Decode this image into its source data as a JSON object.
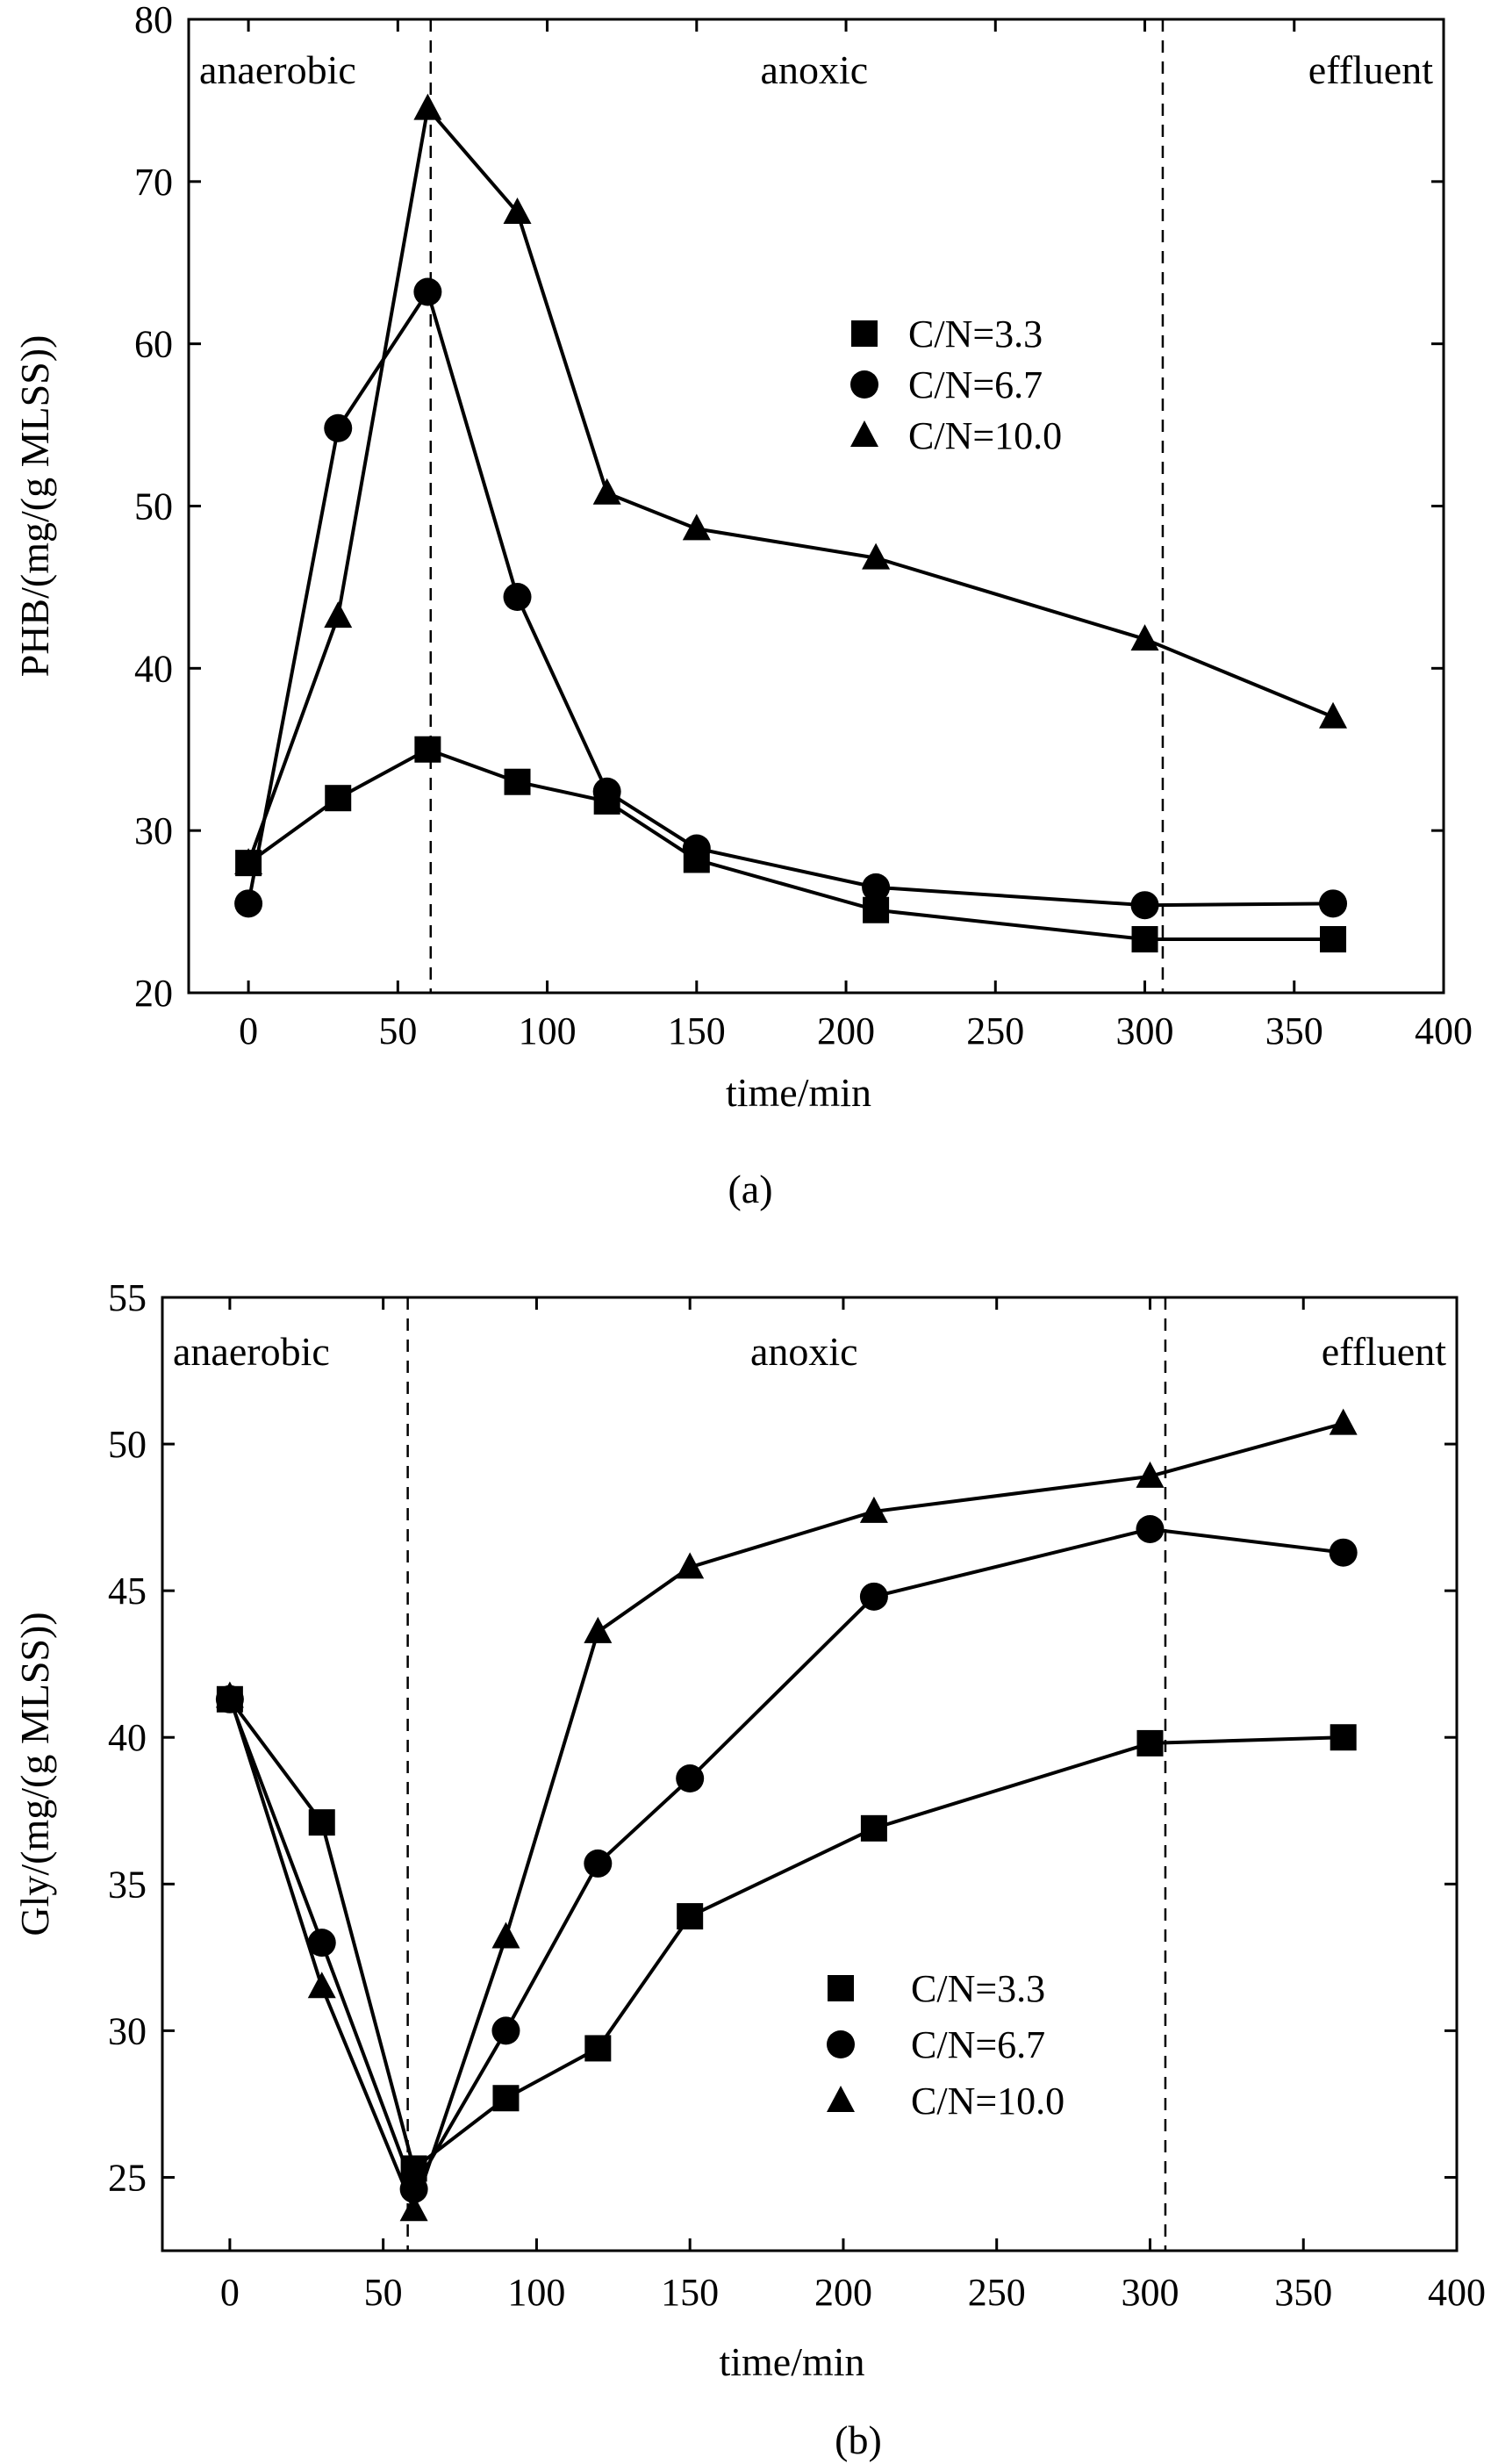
{
  "chart_data": [
    {
      "type": "line",
      "panel": "(a)",
      "caption": "(a)",
      "xlabel": "time/min",
      "ylabel": "PHB/(mg/(g MLSS))",
      "xlim": [
        -20,
        400
      ],
      "ylim": [
        20,
        80
      ],
      "xticks": [
        0,
        50,
        100,
        150,
        200,
        250,
        300,
        350,
        400
      ],
      "yticks": [
        20,
        30,
        40,
        50,
        60,
        70,
        80
      ],
      "phase_boundaries": [
        61,
        306
      ],
      "regions": [
        {
          "label": "anaerobic",
          "align": "left"
        },
        {
          "label": "anoxic",
          "align": "center"
        },
        {
          "label": "effluent",
          "align": "right"
        }
      ],
      "legend_position": "upper-middle",
      "series": [
        {
          "name": "C/N=3.3",
          "marker": "square",
          "x": [
            0,
            30,
            60,
            90,
            120,
            150,
            210,
            300,
            363
          ],
          "y": [
            28,
            32,
            35,
            33,
            31.8,
            28.2,
            25.1,
            23.3,
            23.3
          ]
        },
        {
          "name": "C/N=6.7",
          "marker": "circle",
          "x": [
            0,
            30,
            60,
            90,
            120,
            150,
            210,
            300,
            363
          ],
          "y": [
            25.5,
            54.8,
            63.2,
            44.4,
            32.4,
            28.9,
            26.5,
            25.4,
            25.5
          ]
        },
        {
          "name": "C/N=10.0",
          "marker": "triangle",
          "x": [
            0,
            30,
            60,
            90,
            120,
            150,
            210,
            300,
            363
          ],
          "y": [
            28,
            43.2,
            74.5,
            68.1,
            50.8,
            48.6,
            46.8,
            41.8,
            37
          ]
        }
      ]
    },
    {
      "type": "line",
      "panel": "(b)",
      "caption": "(b)",
      "xlabel": "time/min",
      "ylabel": "Gly/(mg/(g MLSS))",
      "xlim": [
        -22,
        400
      ],
      "ylim": [
        22.5,
        55
      ],
      "xticks": [
        0,
        50,
        100,
        150,
        200,
        250,
        300,
        350,
        400
      ],
      "yticks": [
        25,
        30,
        35,
        40,
        45,
        50,
        55
      ],
      "phase_boundaries": [
        58,
        305
      ],
      "regions": [
        {
          "label": "anaerobic",
          "align": "left"
        },
        {
          "label": "anoxic",
          "align": "center"
        },
        {
          "label": "effluent",
          "align": "right"
        }
      ],
      "legend_position": "lower-middle",
      "series": [
        {
          "name": "C/N=3.3",
          "marker": "square",
          "x": [
            0,
            30,
            60,
            90,
            120,
            150,
            210,
            300,
            363
          ],
          "y": [
            41.3,
            37.1,
            25.3,
            27.7,
            29.4,
            33.9,
            36.9,
            39.8,
            40
          ]
        },
        {
          "name": "C/N=6.7",
          "marker": "circle",
          "x": [
            0,
            30,
            60,
            90,
            120,
            150,
            210,
            300,
            363
          ],
          "y": [
            41.3,
            33,
            24.6,
            30,
            35.7,
            38.6,
            44.8,
            47.1,
            46.3
          ]
        },
        {
          "name": "C/N=10.0",
          "marker": "triangle",
          "x": [
            0,
            30,
            60,
            90,
            120,
            150,
            210,
            300,
            363
          ],
          "y": [
            41.4,
            31.5,
            23.9,
            33.2,
            43.6,
            45.8,
            47.7,
            48.9,
            50.7
          ]
        }
      ]
    }
  ]
}
